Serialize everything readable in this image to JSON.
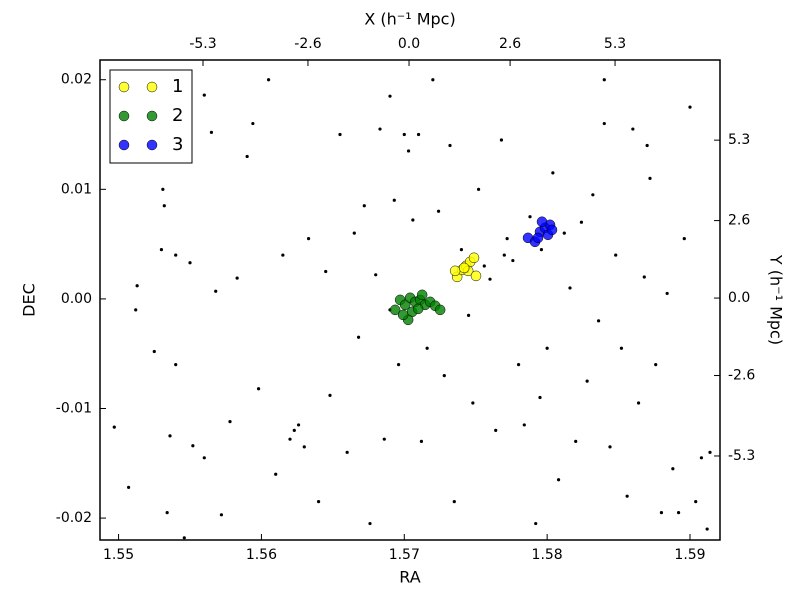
{
  "chart_data": {
    "type": "scatter",
    "xlabel": "RA",
    "ylabel": "DEC",
    "x2label": "X (h⁻¹ Mpc)",
    "y2label": "Y (h⁻¹ Mpc)",
    "xlim": [
      1.5487,
      1.5921
    ],
    "ylim": [
      -0.022,
      0.0218
    ],
    "xticks": [
      1.55,
      1.56,
      1.57,
      1.58,
      1.59
    ],
    "yticks": [
      -0.02,
      -0.01,
      {
        "value": 0,
        "label": "0.00"
      },
      0.01,
      0.02
    ],
    "x2lim": [
      -7.95,
      8.0
    ],
    "x2ticks": [
      -5.3,
      -2.6,
      {
        "value": 0,
        "label": "0.0"
      },
      2.6,
      5.3
    ],
    "y2lim": [
      -8.12,
      7.99
    ],
    "y2ticks": [
      -5.3,
      -2.6,
      {
        "value": 0,
        "label": "0.0"
      },
      2.6,
      5.3
    ],
    "legend": "upper left",
    "series": [
      {
        "color": "#000000",
        "x": [
          1.5497,
          1.5507,
          1.5512,
          1.5513,
          1.5525,
          1.5531,
          1.5532,
          1.553,
          1.5534,
          1.5536,
          1.554,
          1.5546,
          1.555,
          1.5552,
          1.556,
          1.5565,
          1.5568,
          1.5572,
          1.5578,
          1.5583,
          1.559,
          1.5594,
          1.5598,
          1.5605,
          1.561,
          1.5615,
          1.562,
          1.5623,
          1.5626,
          1.563,
          1.5633,
          1.564,
          1.5645,
          1.5648,
          1.5655,
          1.566,
          1.5665,
          1.5668,
          1.5672,
          1.5676,
          1.568,
          1.5683,
          1.5686,
          1.569,
          1.5693,
          1.5696,
          1.57,
          1.5703,
          1.5706,
          1.571,
          1.5712,
          1.5716,
          1.572,
          1.5724,
          1.5728,
          1.5732,
          1.5735,
          1.574,
          1.5744,
          1.5748,
          1.5752,
          1.5756,
          1.576,
          1.5764,
          1.5768,
          1.5772,
          1.5776,
          1.578,
          1.5784,
          1.5788,
          1.5792,
          1.5796,
          1.58,
          1.5804,
          1.5808,
          1.5812,
          1.5816,
          1.582,
          1.5824,
          1.5828,
          1.5832,
          1.5836,
          1.584,
          1.5844,
          1.5848,
          1.5852,
          1.5856,
          1.586,
          1.5864,
          1.5868,
          1.5872,
          1.5876,
          1.588,
          1.5884,
          1.5888,
          1.5892,
          1.5896,
          1.59,
          1.5904,
          1.5908,
          1.5912,
          1.5914,
          1.587,
          1.584,
          1.577,
          1.5745,
          1.569,
          1.5795,
          1.556,
          1.554
        ],
        "y": [
          -0.0117,
          -0.0172,
          -0.001,
          0.0012,
          -0.0048,
          0.01,
          0.0085,
          0.0045,
          -0.0195,
          -0.0125,
          -0.006,
          -0.0218,
          0.0033,
          -0.0134,
          0.0186,
          0.0152,
          0.0007,
          -0.0197,
          -0.0112,
          0.0019,
          0.013,
          0.016,
          -0.0082,
          0.02,
          -0.016,
          0.004,
          -0.0128,
          -0.012,
          -0.0115,
          -0.0135,
          0.0055,
          -0.0185,
          0.0025,
          -0.0088,
          0.015,
          -0.014,
          0.006,
          -0.0035,
          0.0085,
          -0.0205,
          0.0022,
          0.0155,
          -0.0128,
          0.0185,
          0.009,
          -0.006,
          0.015,
          0.0135,
          0.0072,
          0.015,
          -0.013,
          -0.0045,
          0.02,
          0.008,
          -0.007,
          0.014,
          -0.0185,
          0.0045,
          0.0025,
          -0.0095,
          0.01,
          0.003,
          0.0018,
          -0.012,
          0.0145,
          0.0055,
          0.0035,
          -0.006,
          -0.0115,
          0.0075,
          -0.0205,
          0.0045,
          -0.0045,
          0.0115,
          -0.0165,
          0.006,
          0.001,
          -0.013,
          0.007,
          -0.0075,
          0.0095,
          -0.002,
          0.016,
          -0.0135,
          0.004,
          -0.0045,
          -0.018,
          0.0155,
          -0.0095,
          0.002,
          0.011,
          -0.006,
          -0.0195,
          0.0005,
          -0.0155,
          -0.0195,
          0.0055,
          0.0175,
          -0.0185,
          -0.0145,
          -0.021,
          -0.014,
          0.014,
          0.02,
          0.004,
          -0.0015,
          -0.001,
          -0.009,
          -0.0145,
          0.004
        ]
      },
      {
        "name": "1",
        "color": "#ffff00",
        "x": [
          1.5737,
          1.57405,
          1.57433,
          1.57461,
          1.57488,
          1.57447,
          1.57356,
          1.57502,
          1.57419
        ],
        "y": [
          0.00201,
          0.00265,
          0.00302,
          0.00338,
          0.00375,
          0.00256,
          0.00256,
          0.0021,
          0.00283
        ]
      },
      {
        "name": "2",
        "color": "#008000",
        "x": [
          1.56971,
          1.57006,
          1.57041,
          1.57076,
          1.57111,
          1.57146,
          1.57181,
          1.57216,
          1.57055,
          1.57097,
          1.56936,
          1.57027,
          1.57251,
          1.57125,
          1.56992
        ],
        "y": [
          -9e-05,
          -0.00054,
          0.0001,
          -0.00027,
          -9e-05,
          -0.00054,
          -0.00027,
          -0.00063,
          -0.00118,
          -0.00091,
          -0.001,
          -0.00191,
          -0.001,
          0.00037,
          -0.00146
        ]
      },
      {
        "name": "3",
        "color": "#0000ff",
        "x": [
          1.57866,
          1.57915,
          1.5795,
          1.57985,
          1.5802,
          1.57964,
          1.58006,
          1.57936,
          1.58034
        ],
        "y": [
          0.00557,
          0.00521,
          0.00612,
          0.00649,
          0.00676,
          0.00704,
          0.00585,
          0.00557,
          0.0063
        ]
      }
    ]
  }
}
